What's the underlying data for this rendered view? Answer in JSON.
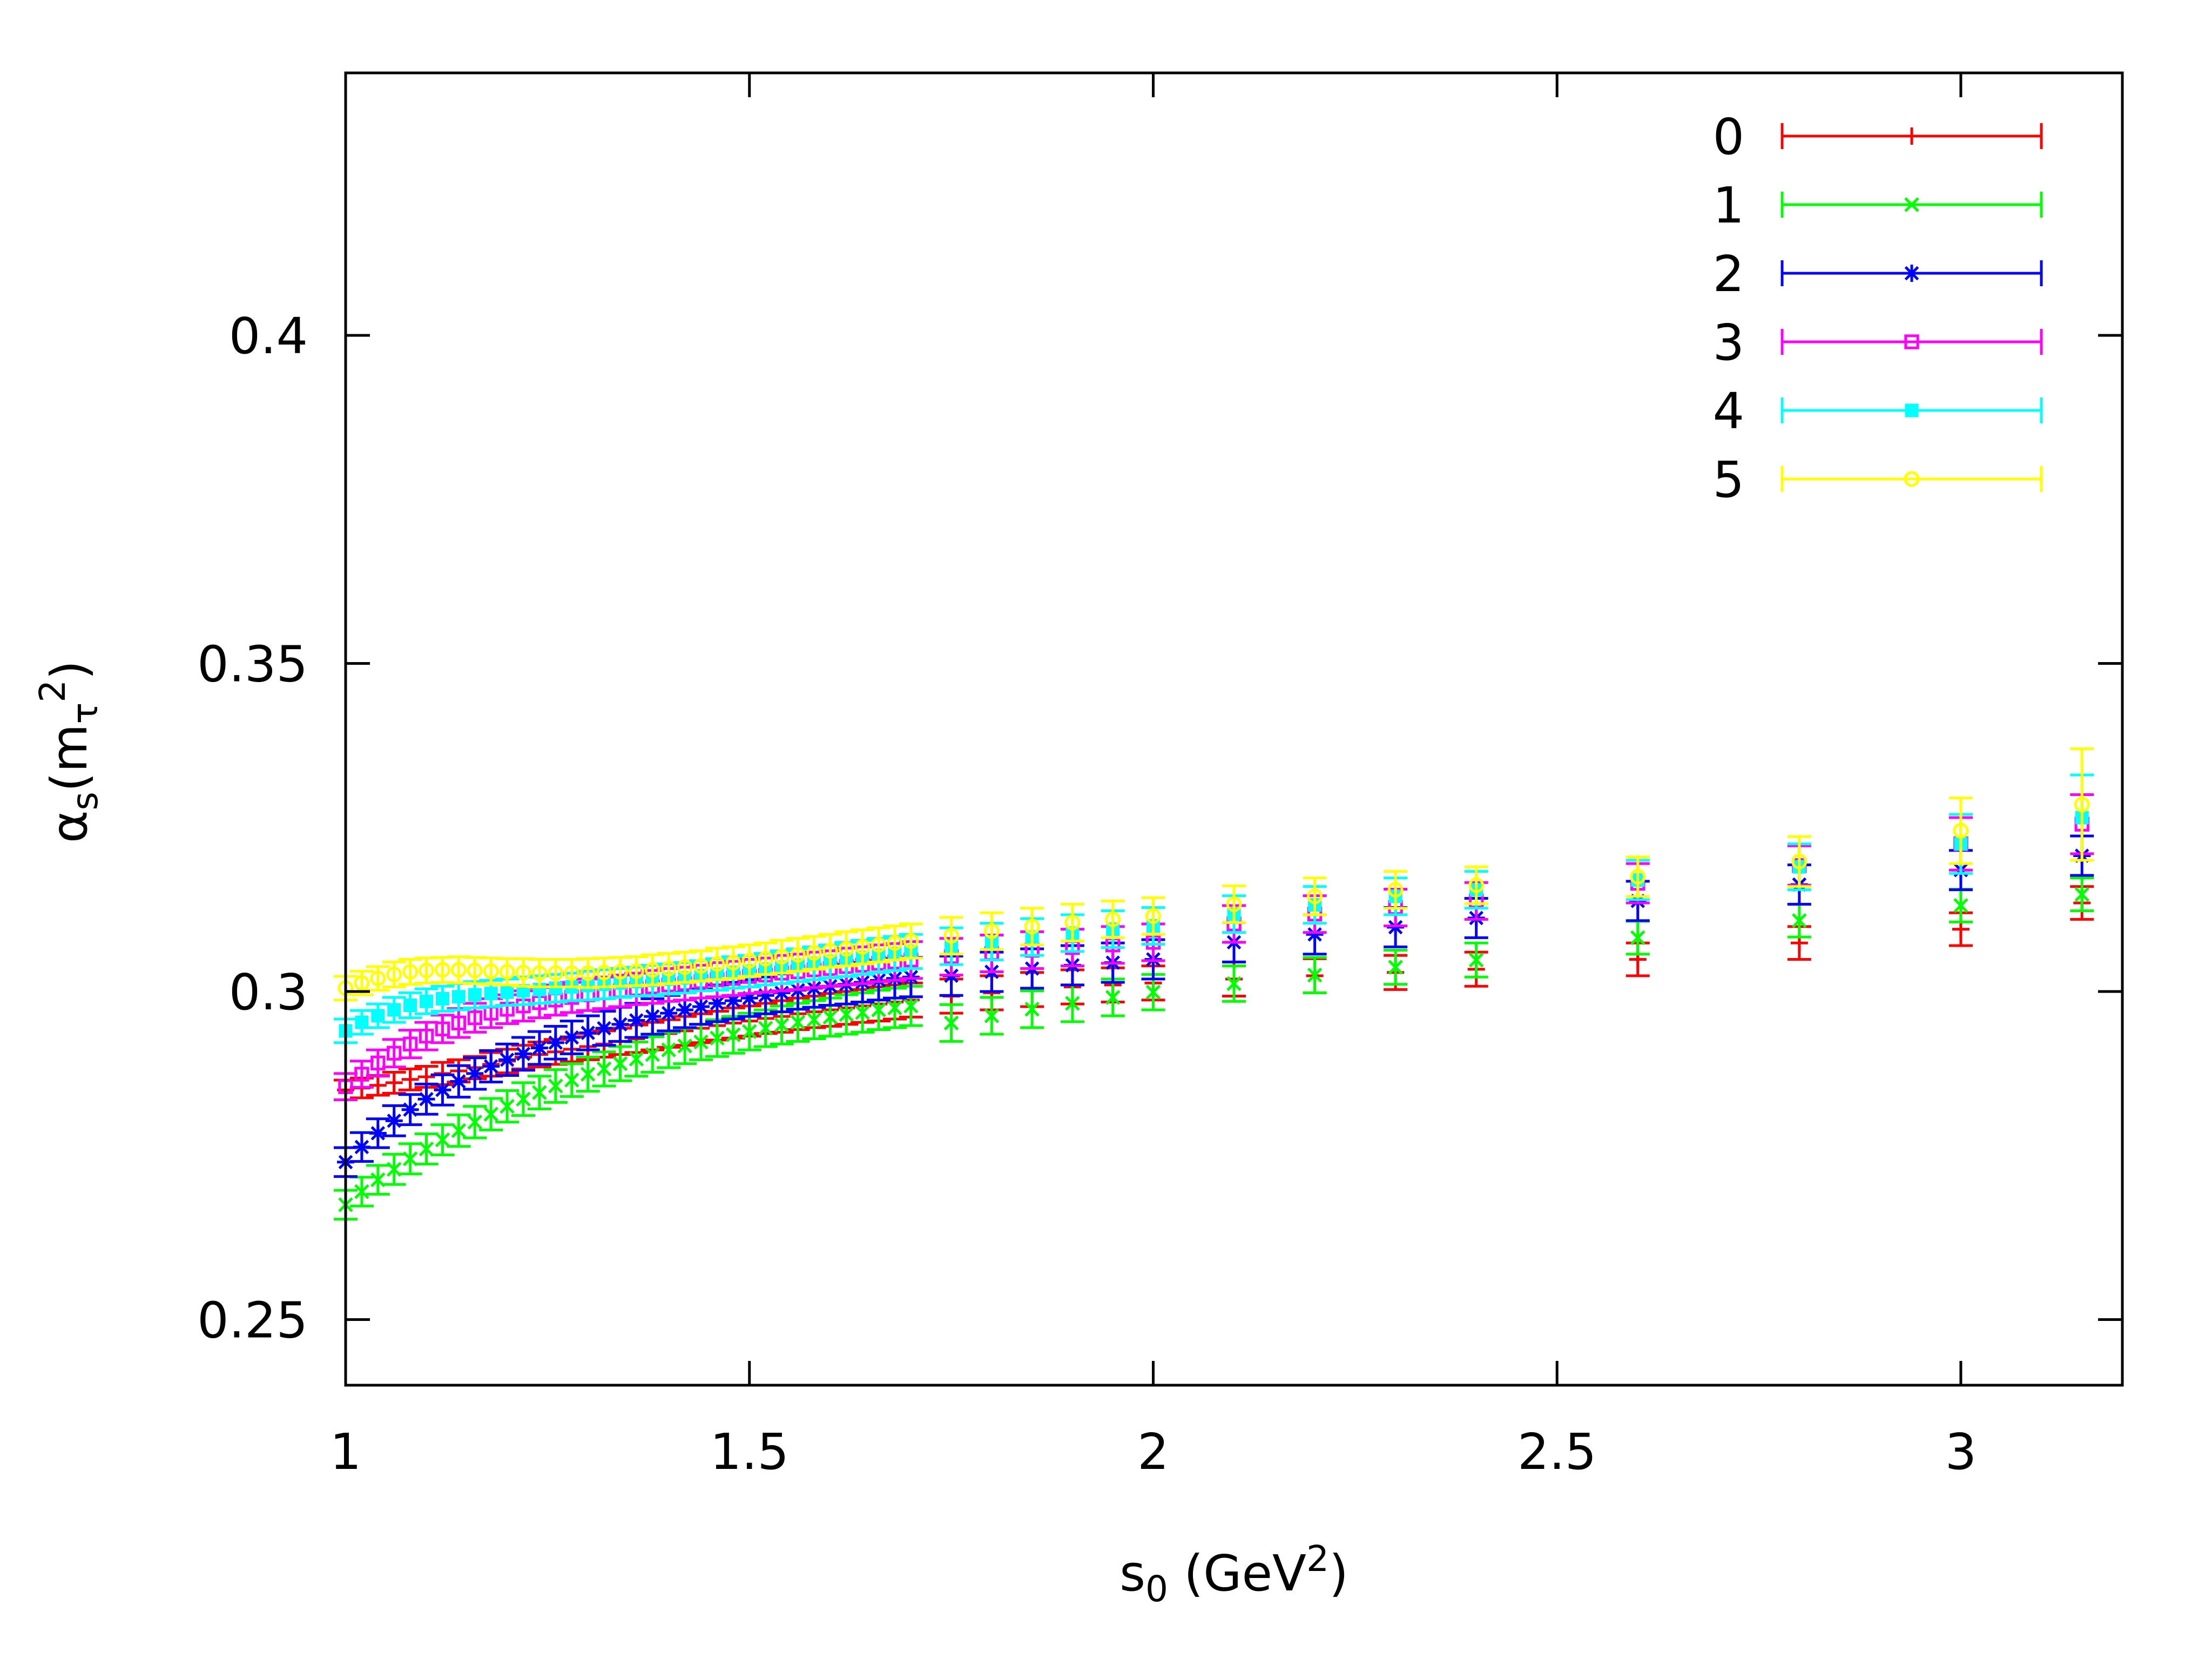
{
  "chart_data": {
    "type": "scatter",
    "title": "",
    "xlabel": "s0 (GeV2)",
    "xlabel_parts": {
      "base": "s",
      "sub": "0",
      "unit_open": " (GeV",
      "sup": "2",
      "unit_close": ")"
    },
    "ylabel": "αs(mτ2)",
    "ylabel_parts": {
      "alpha": "α",
      "sub_s": "s",
      "open": "(m",
      "sub_tau": "τ",
      "sup": "2",
      "close": ")"
    },
    "xlim": [
      1.0,
      3.2
    ],
    "ylim": [
      0.24,
      0.44
    ],
    "x_ticks": [
      1,
      1.5,
      2,
      2.5,
      3
    ],
    "x_tick_labels": [
      "1",
      "1.5",
      "2",
      "2.5",
      "3"
    ],
    "y_ticks": [
      0.25,
      0.3,
      0.35,
      0.4
    ],
    "y_tick_labels": [
      "0.25",
      "0.3",
      "0.35",
      "0.4"
    ],
    "legend_position": "top-right",
    "grid": false,
    "x": [
      1.0,
      1.02,
      1.04,
      1.06,
      1.08,
      1.1,
      1.12,
      1.14,
      1.16,
      1.18,
      1.2,
      1.22,
      1.24,
      1.26,
      1.28,
      1.3,
      1.32,
      1.34,
      1.36,
      1.38,
      1.4,
      1.42,
      1.44,
      1.46,
      1.48,
      1.5,
      1.52,
      1.54,
      1.56,
      1.58,
      1.6,
      1.62,
      1.64,
      1.66,
      1.68,
      1.7,
      1.75,
      1.8,
      1.85,
      1.9,
      1.95,
      2.0,
      2.1,
      2.2,
      2.3,
      2.4,
      2.6,
      2.8,
      3.0,
      3.15
    ],
    "series": [
      {
        "name": "0",
        "color": "#ff0000",
        "marker": "plus",
        "values": [
          0.285,
          0.2853,
          0.2857,
          0.2861,
          0.2866,
          0.287,
          0.2875,
          0.2879,
          0.2884,
          0.2889,
          0.2894,
          0.29,
          0.2904,
          0.2908,
          0.2912,
          0.2916,
          0.292,
          0.2924,
          0.2928,
          0.2932,
          0.2936,
          0.294,
          0.2944,
          0.2948,
          0.2952,
          0.2955,
          0.2959,
          0.2962,
          0.2966,
          0.2969,
          0.2972,
          0.2975,
          0.2978,
          0.2981,
          0.2984,
          0.2987,
          0.2993,
          0.2998,
          0.3003,
          0.3007,
          0.301,
          0.3013,
          0.3019,
          0.3024,
          0.3029,
          0.3034,
          0.3049,
          0.3074,
          0.3095,
          0.3135
        ],
        "err": [
          0.0015,
          0.0015,
          0.0015,
          0.0016,
          0.0016,
          0.0016,
          0.0017,
          0.0017,
          0.0017,
          0.0018,
          0.0018,
          0.0018,
          0.0019,
          0.0019,
          0.0019,
          0.002,
          0.002,
          0.002,
          0.0021,
          0.0021,
          0.0021,
          0.0022,
          0.0022,
          0.0022,
          0.0023,
          0.0023,
          0.0023,
          0.0024,
          0.0024,
          0.0024,
          0.0025,
          0.0025,
          0.0025,
          0.0026,
          0.0026,
          0.0026,
          0.0026,
          0.0026,
          0.0026,
          0.0026,
          0.0026,
          0.0026,
          0.0026,
          0.0026,
          0.0026,
          0.0026,
          0.0025,
          0.0025,
          0.0025,
          0.0025
        ]
      },
      {
        "name": "1",
        "color": "#00ff00",
        "marker": "cross",
        "values": [
          0.2675,
          0.2695,
          0.2713,
          0.2729,
          0.2745,
          0.276,
          0.2774,
          0.2788,
          0.2801,
          0.2813,
          0.2825,
          0.2836,
          0.2846,
          0.2856,
          0.2865,
          0.2874,
          0.2882,
          0.289,
          0.2897,
          0.2904,
          0.2911,
          0.2917,
          0.2923,
          0.2929,
          0.2934,
          0.2939,
          0.2944,
          0.2949,
          0.2953,
          0.2957,
          0.2961,
          0.2965,
          0.2968,
          0.2972,
          0.2975,
          0.2978,
          0.2952,
          0.2963,
          0.2973,
          0.2982,
          0.2991,
          0.2999,
          0.3012,
          0.3025,
          0.3037,
          0.3048,
          0.3082,
          0.3108,
          0.3131,
          0.3148
        ],
        "err": [
          0.0022,
          0.0022,
          0.0022,
          0.0023,
          0.0023,
          0.0023,
          0.0023,
          0.0024,
          0.0024,
          0.0024,
          0.0024,
          0.0025,
          0.0025,
          0.0025,
          0.0025,
          0.0026,
          0.0026,
          0.0026,
          0.0026,
          0.0027,
          0.0027,
          0.0027,
          0.0027,
          0.0028,
          0.0028,
          0.0028,
          0.0028,
          0.0029,
          0.0029,
          0.0029,
          0.0029,
          0.003,
          0.003,
          0.003,
          0.003,
          0.003,
          0.0028,
          0.0028,
          0.0028,
          0.0028,
          0.0028,
          0.0027,
          0.0027,
          0.0027,
          0.0026,
          0.0026,
          0.0025,
          0.0025,
          0.0025,
          0.0025
        ]
      },
      {
        "name": "2",
        "color": "#0000ff",
        "marker": "star",
        "values": [
          0.274,
          0.2763,
          0.2784,
          0.2803,
          0.282,
          0.2836,
          0.285,
          0.2863,
          0.2875,
          0.2886,
          0.2896,
          0.2905,
          0.2914,
          0.2922,
          0.293,
          0.2937,
          0.2944,
          0.295,
          0.2956,
          0.2962,
          0.2967,
          0.2972,
          0.2977,
          0.2982,
          0.2986,
          0.299,
          0.2994,
          0.2998,
          0.3002,
          0.3005,
          0.3008,
          0.3011,
          0.3014,
          0.3017,
          0.302,
          0.3022,
          0.3024,
          0.303,
          0.3035,
          0.304,
          0.3044,
          0.3049,
          0.3075,
          0.3087,
          0.3098,
          0.3112,
          0.3138,
          0.3163,
          0.3185,
          0.3207
        ],
        "err": [
          0.0022,
          0.0022,
          0.0022,
          0.0023,
          0.0023,
          0.0023,
          0.0023,
          0.0024,
          0.0024,
          0.0024,
          0.0024,
          0.0025,
          0.0025,
          0.0025,
          0.0025,
          0.0026,
          0.0026,
          0.0026,
          0.0026,
          0.0027,
          0.0027,
          0.0027,
          0.0027,
          0.0028,
          0.0028,
          0.0028,
          0.0028,
          0.0029,
          0.0029,
          0.0029,
          0.0029,
          0.003,
          0.003,
          0.003,
          0.003,
          0.003,
          0.003,
          0.003,
          0.003,
          0.003,
          0.003,
          0.003,
          0.003,
          0.003,
          0.003,
          0.003,
          0.003,
          0.003,
          0.003,
          0.003
        ]
      },
      {
        "name": "3",
        "color": "#ff00ff",
        "marker": "square",
        "values": [
          0.2855,
          0.2874,
          0.2891,
          0.2906,
          0.292,
          0.2932,
          0.2943,
          0.2952,
          0.296,
          0.2967,
          0.2973,
          0.2978,
          0.2983,
          0.2987,
          0.2991,
          0.2995,
          0.2998,
          0.3001,
          0.3004,
          0.3007,
          0.301,
          0.3012,
          0.3015,
          0.3018,
          0.302,
          0.3023,
          0.3025,
          0.3028,
          0.303,
          0.3033,
          0.3035,
          0.3038,
          0.304,
          0.3043,
          0.3045,
          0.3048,
          0.3053,
          0.3058,
          0.3063,
          0.3067,
          0.3071,
          0.3075,
          0.3103,
          0.3118,
          0.3128,
          0.3138,
          0.3165,
          0.3192,
          0.3225,
          0.3255
        ],
        "err": [
          0.002,
          0.002,
          0.002,
          0.0021,
          0.0021,
          0.0021,
          0.0021,
          0.0022,
          0.0022,
          0.0022,
          0.0022,
          0.0023,
          0.0023,
          0.0023,
          0.0023,
          0.0024,
          0.0024,
          0.0024,
          0.0024,
          0.0025,
          0.0025,
          0.0025,
          0.0025,
          0.0026,
          0.0026,
          0.0026,
          0.0026,
          0.0027,
          0.0027,
          0.0027,
          0.0027,
          0.0028,
          0.0028,
          0.0028,
          0.0028,
          0.0028,
          0.0028,
          0.0028,
          0.0028,
          0.0028,
          0.0028,
          0.0028,
          0.0028,
          0.0028,
          0.0028,
          0.0028,
          0.003,
          0.003,
          0.004,
          0.0045
        ]
      },
      {
        "name": "4",
        "color": "#00ffff",
        "marker": "filled-square",
        "values": [
          0.294,
          0.2953,
          0.2963,
          0.2972,
          0.2979,
          0.2985,
          0.2989,
          0.2992,
          0.2995,
          0.2997,
          0.2999,
          0.3001,
          0.3003,
          0.3005,
          0.3007,
          0.3009,
          0.3011,
          0.3013,
          0.3015,
          0.3017,
          0.3019,
          0.3021,
          0.3024,
          0.3026,
          0.3029,
          0.3031,
          0.3034,
          0.3037,
          0.304,
          0.3043,
          0.3046,
          0.3049,
          0.3052,
          0.3055,
          0.3058,
          0.3061,
          0.3069,
          0.3076,
          0.3083,
          0.3089,
          0.3095,
          0.31,
          0.3118,
          0.3132,
          0.3145,
          0.3155,
          0.317,
          0.319,
          0.3225,
          0.3265
        ],
        "err": [
          0.0018,
          0.0018,
          0.0018,
          0.0019,
          0.0019,
          0.0019,
          0.0019,
          0.002,
          0.002,
          0.002,
          0.002,
          0.0021,
          0.0021,
          0.0021,
          0.0021,
          0.0022,
          0.0022,
          0.0022,
          0.0022,
          0.0023,
          0.0023,
          0.0023,
          0.0023,
          0.0024,
          0.0024,
          0.0024,
          0.0024,
          0.0025,
          0.0025,
          0.0025,
          0.0025,
          0.0026,
          0.0026,
          0.0026,
          0.0026,
          0.0026,
          0.0028,
          0.0028,
          0.0028,
          0.0028,
          0.0028,
          0.0028,
          0.0028,
          0.0028,
          0.0028,
          0.0028,
          0.003,
          0.0035,
          0.0045,
          0.0065
        ]
      },
      {
        "name": "5",
        "color": "#ffff00",
        "marker": "circle",
        "values": [
          0.3005,
          0.3013,
          0.302,
          0.3026,
          0.303,
          0.3032,
          0.3033,
          0.3033,
          0.3032,
          0.3031,
          0.303,
          0.3029,
          0.3028,
          0.3028,
          0.3028,
          0.3028,
          0.3029,
          0.303,
          0.3031,
          0.3033,
          0.3035,
          0.3037,
          0.3039,
          0.3042,
          0.3044,
          0.3047,
          0.305,
          0.3053,
          0.3056,
          0.3059,
          0.3062,
          0.3065,
          0.3068,
          0.3071,
          0.3074,
          0.3077,
          0.3085,
          0.3092,
          0.3099,
          0.3105,
          0.311,
          0.3115,
          0.3133,
          0.3145,
          0.3155,
          0.3162,
          0.3175,
          0.3198,
          0.3245,
          0.3285
        ],
        "err": [
          0.0018,
          0.0018,
          0.0018,
          0.0019,
          0.0019,
          0.0019,
          0.0019,
          0.002,
          0.002,
          0.002,
          0.002,
          0.0021,
          0.0021,
          0.0021,
          0.0021,
          0.0022,
          0.0022,
          0.0022,
          0.0022,
          0.0023,
          0.0023,
          0.0023,
          0.0023,
          0.0024,
          0.0024,
          0.0024,
          0.0024,
          0.0025,
          0.0025,
          0.0025,
          0.0025,
          0.0026,
          0.0026,
          0.0026,
          0.0026,
          0.0026,
          0.0028,
          0.0028,
          0.0028,
          0.0028,
          0.0028,
          0.0028,
          0.0028,
          0.0028,
          0.0028,
          0.0028,
          0.003,
          0.0038,
          0.005,
          0.0085
        ]
      }
    ]
  }
}
